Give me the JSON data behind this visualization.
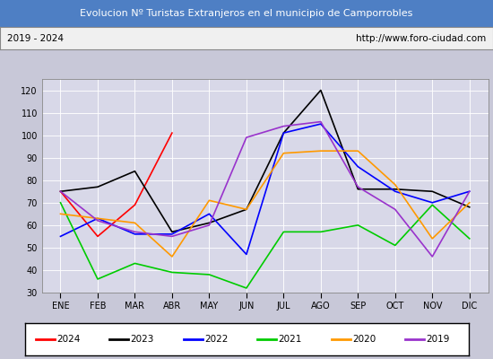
{
  "title": "Evolucion Nº Turistas Extranjeros en el municipio de Camporrobles",
  "subtitle_left": "2019 - 2024",
  "subtitle_right": "http://www.foro-ciudad.com",
  "title_bg_color": "#4e7fc4",
  "title_text_color": "#ffffff",
  "subtitle_bg_color": "#f0f0f0",
  "plot_bg_color": "#d8d8e8",
  "fig_bg_color": "#c8c8d8",
  "months": [
    "ENE",
    "FEB",
    "MAR",
    "ABR",
    "MAY",
    "JUN",
    "JUL",
    "AGO",
    "SEP",
    "OCT",
    "NOV",
    "DIC"
  ],
  "ylim": [
    30,
    125
  ],
  "yticks": [
    30,
    40,
    50,
    60,
    70,
    80,
    90,
    100,
    110,
    120
  ],
  "series": {
    "2024": {
      "color": "#ff0000",
      "data": [
        75,
        55,
        69,
        101,
        null,
        null,
        null,
        null,
        null,
        null,
        null,
        null
      ]
    },
    "2023": {
      "color": "#000000",
      "data": [
        75,
        77,
        84,
        57,
        61,
        67,
        101,
        120,
        76,
        76,
        75,
        68
      ]
    },
    "2022": {
      "color": "#0000ff",
      "data": [
        55,
        63,
        56,
        56,
        65,
        47,
        101,
        105,
        86,
        75,
        70,
        75
      ]
    },
    "2021": {
      "color": "#00cc00",
      "data": [
        70,
        36,
        43,
        39,
        38,
        32,
        57,
        57,
        60,
        51,
        69,
        54
      ]
    },
    "2020": {
      "color": "#ff9900",
      "data": [
        65,
        63,
        61,
        46,
        71,
        67,
        92,
        93,
        93,
        78,
        54,
        70
      ]
    },
    "2019": {
      "color": "#9933cc",
      "data": [
        75,
        62,
        57,
        55,
        60,
        99,
        104,
        106,
        77,
        67,
        46,
        75
      ]
    }
  },
  "legend_order": [
    "2024",
    "2023",
    "2022",
    "2021",
    "2020",
    "2019"
  ]
}
